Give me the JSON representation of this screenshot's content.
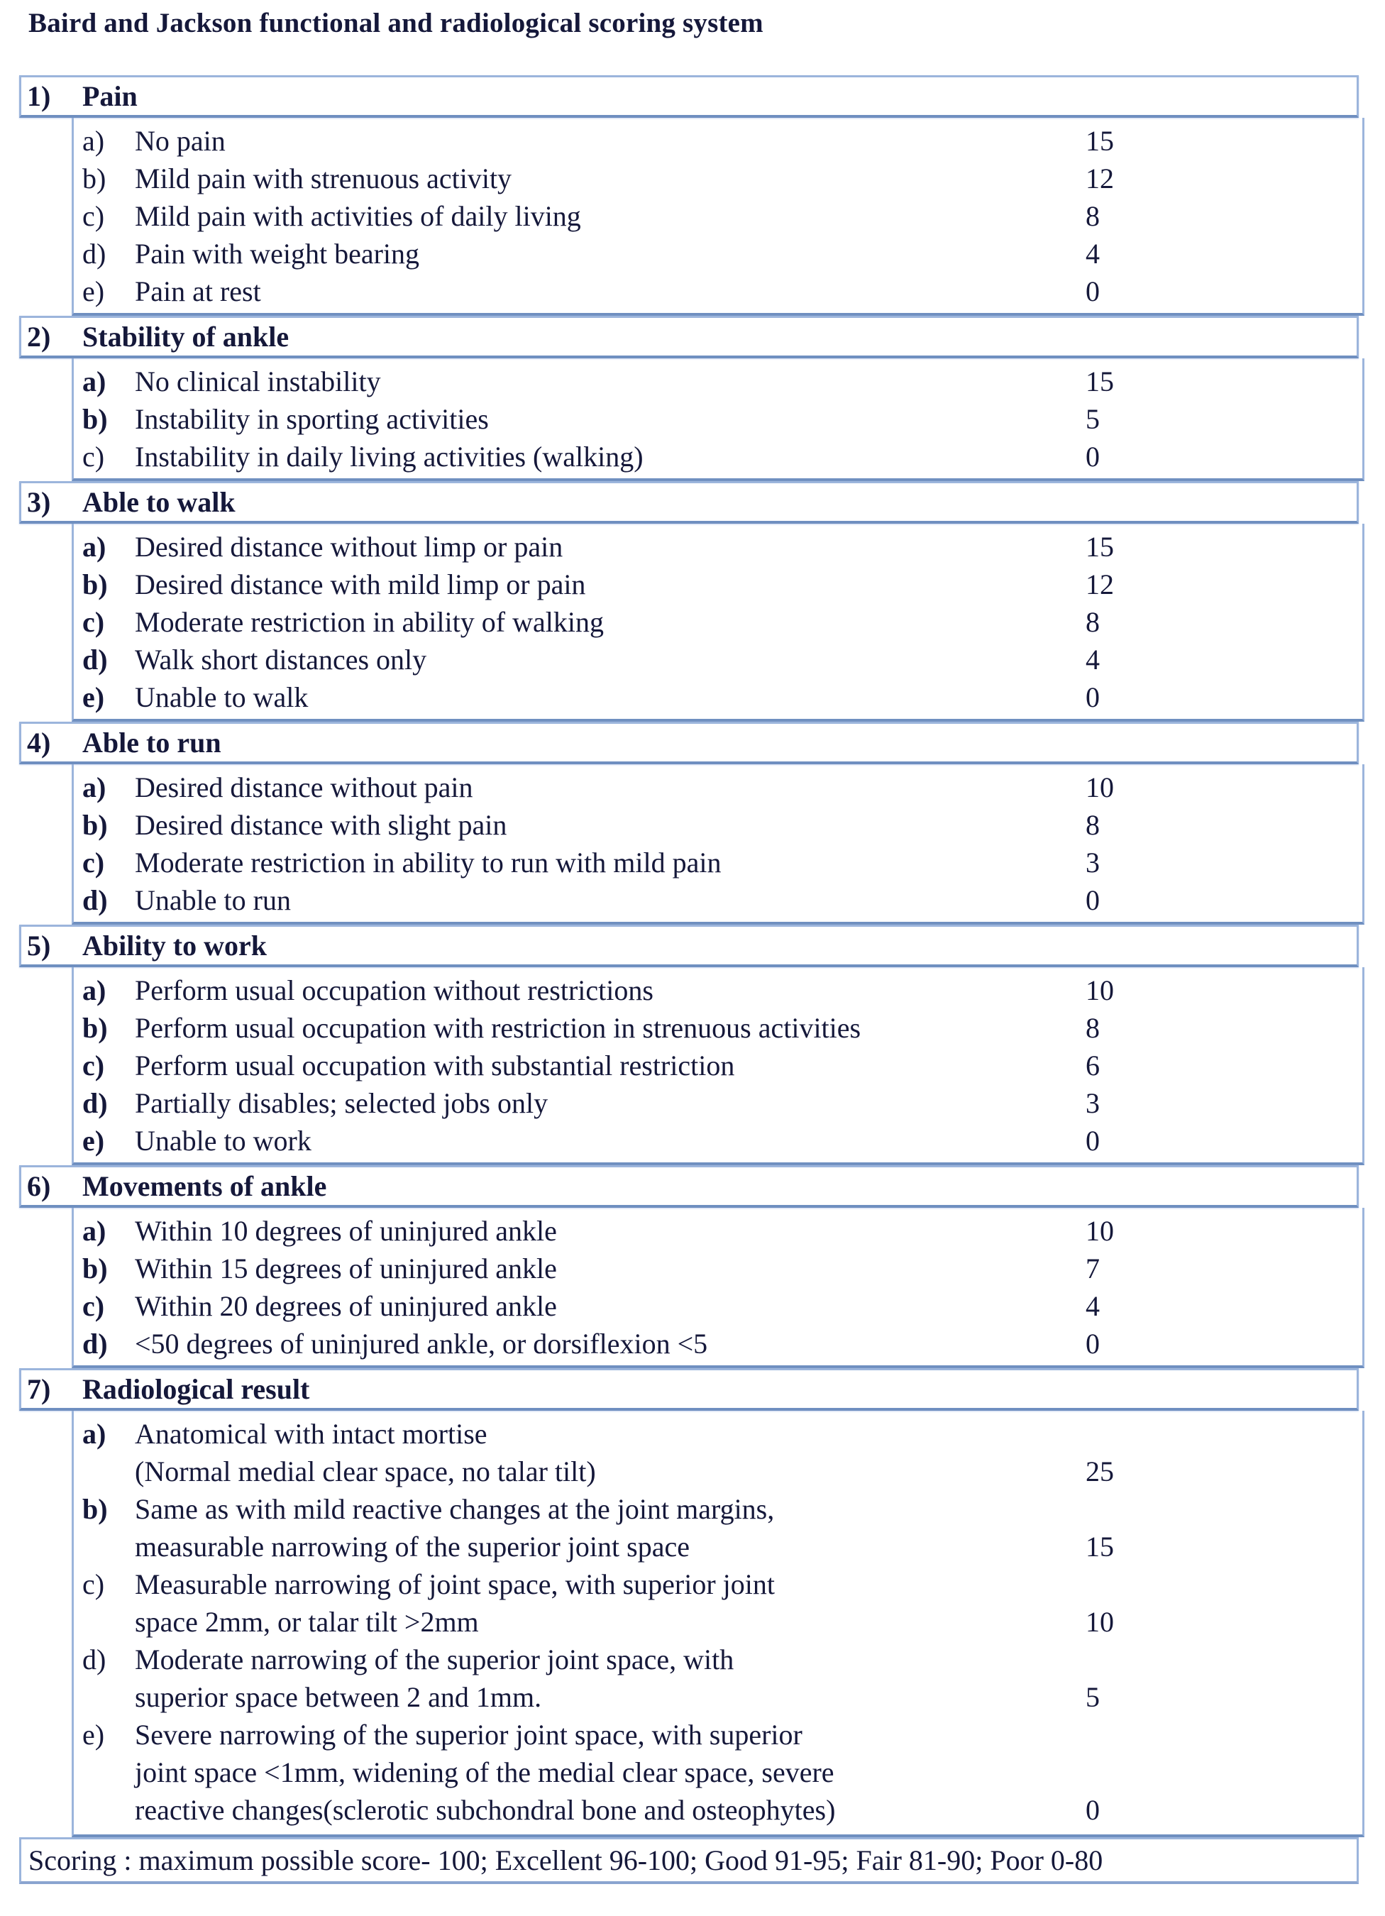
{
  "title": "Baird and Jackson functional and radiological scoring system",
  "sections": [
    {
      "num": "1)",
      "title": "Pain",
      "items": [
        {
          "letter": "a)",
          "text": "No pain",
          "score": "15"
        },
        {
          "letter": "b)",
          "text": "Mild pain with strenuous activity",
          "score": "12"
        },
        {
          "letter": "c)",
          "text": "Mild pain with activities of daily living",
          "score": "8"
        },
        {
          "letter": "d)",
          "text": "Pain with weight bearing",
          "score": "4"
        },
        {
          "letter": "e)",
          "text": "Pain at rest",
          "score": "0"
        }
      ]
    },
    {
      "num": "2)",
      "title": "Stability of ankle",
      "items": [
        {
          "letter": "a)",
          "text": "No clinical instability",
          "score": "15"
        },
        {
          "letter": "b)",
          "text": "Instability in sporting activities",
          "score": "5"
        },
        {
          "letter": "c)",
          "text": "Instability in daily living activities (walking)",
          "score": "0"
        }
      ]
    },
    {
      "num": "3)",
      "title": "Able to walk",
      "items": [
        {
          "letter": "a)",
          "text": "Desired distance without limp or pain",
          "score": "15"
        },
        {
          "letter": "b)",
          "text": "Desired distance with mild limp or pain",
          "score": "12"
        },
        {
          "letter": "c)",
          "text": "Moderate restriction in ability of walking",
          "score": "8"
        },
        {
          "letter": "d)",
          "text": "Walk short distances only",
          "score": "4"
        },
        {
          "letter": "e)",
          "text": "Unable to walk",
          "score": "0"
        }
      ]
    },
    {
      "num": "4)",
      "title": "Able to run",
      "items": [
        {
          "letter": "a)",
          "text": "Desired distance without pain",
          "score": "10"
        },
        {
          "letter": "b)",
          "text": "Desired distance with slight pain",
          "score": "8"
        },
        {
          "letter": "c)",
          "text": "Moderate restriction in ability to run with mild pain",
          "score": "3"
        },
        {
          "letter": "d)",
          "text": "Unable to run",
          "score": "0"
        }
      ]
    },
    {
      "num": "5)",
      "title": "Ability to work",
      "items": [
        {
          "letter": "a)",
          "text": "Perform usual occupation without restrictions",
          "score": "10"
        },
        {
          "letter": "b)",
          "text": "Perform usual occupation with restriction in strenuous activities",
          "score": "8"
        },
        {
          "letter": "c)",
          "text": "Perform usual occupation with substantial restriction",
          "score": "6"
        },
        {
          "letter": "d)",
          "text": "Partially disables; selected jobs only",
          "score": "3"
        },
        {
          "letter": "e)",
          "text": "Unable to work",
          "score": "0"
        }
      ]
    },
    {
      "num": "6)",
      "title": "Movements of ankle",
      "items": [
        {
          "letter": "a)",
          "text": "Within 10 degrees of uninjured ankle",
          "score": "10"
        },
        {
          "letter": "b)",
          "text": "Within 15 degrees of uninjured ankle",
          "score": "7"
        },
        {
          "letter": "c)",
          "text": "Within 20 degrees of uninjured ankle",
          "score": "4"
        },
        {
          "letter": "d)",
          "text": "<50 degrees of uninjured ankle, or dorsiflexion <5",
          "score": "0"
        }
      ]
    },
    {
      "num": "7)",
      "title": "Radiological result",
      "items": [
        {
          "letter": "a)",
          "lines": [
            "Anatomical with intact mortise",
            "(Normal medial clear space, no talar tilt)"
          ],
          "score": "25"
        },
        {
          "letter": "b)",
          "lines": [
            "Same as with mild reactive changes at the joint margins,",
            "measurable narrowing of the superior joint space"
          ],
          "score": "15"
        },
        {
          "letter": "c)",
          "lines": [
            "Measurable narrowing of joint space, with superior joint",
            "space 2mm, or talar tilt >2mm"
          ],
          "score": "10"
        },
        {
          "letter": "d)",
          "lines": [
            "Moderate narrowing of the superior joint space, with",
            "superior space between 2 and 1mm."
          ],
          "score": "5"
        },
        {
          "letter": "e)",
          "lines": [
            "Severe narrowing of the superior joint space, with superior",
            "joint space <1mm, widening of the medial clear space, severe",
            "reactive changes(sclerotic subchondral bone and osteophytes)"
          ],
          "score": "0"
        }
      ]
    }
  ],
  "scoring": "Scoring : maximum possible score- 100; Excellent 96-100; Good 91-95; Fair 81-90; Poor 0-80",
  "colors": {
    "text": "#15183a",
    "border": "#9cb5dc",
    "border_dark": "#6f8fc0"
  }
}
